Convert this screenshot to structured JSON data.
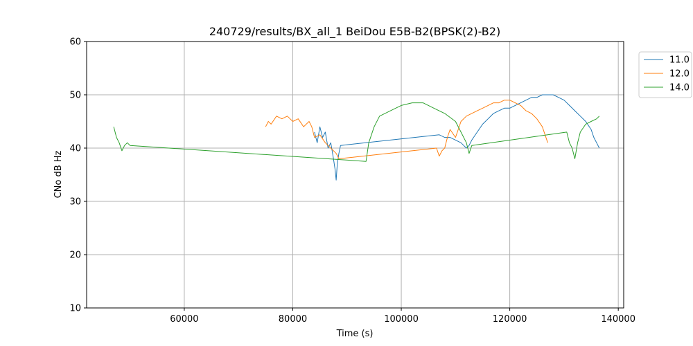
{
  "chart_data": {
    "type": "line",
    "title": "240729/results/BX_all_1 BeiDou E5B-B2(BPSK(2)-B2)",
    "xlabel": "Time (s)",
    "ylabel": "CNo dB Hz",
    "xlim": [
      42000,
      141000
    ],
    "ylim": [
      10,
      60
    ],
    "xticks": [
      60000,
      80000,
      100000,
      120000,
      140000
    ],
    "xtick_labels": [
      "60000",
      "80000",
      "100000",
      "120000",
      "140000"
    ],
    "yticks": [
      10,
      20,
      30,
      40,
      50,
      60
    ],
    "ytick_labels": [
      "10",
      "20",
      "30",
      "40",
      "50",
      "60"
    ],
    "grid": true,
    "legend": "outside-top-right",
    "series": [
      {
        "name": "11.0",
        "color": "#1f77b4",
        "x": [
          84000,
          84500,
          85000,
          85500,
          86000,
          86500,
          87000,
          87500,
          87800,
          88000,
          88200,
          88500,
          88800,
          107000,
          108000,
          109000,
          110000,
          111000,
          111500,
          112000,
          112500,
          113000,
          114000,
          115000,
          116000,
          117000,
          118000,
          119000,
          120000,
          121000,
          122000,
          123000,
          124000,
          125000,
          126000,
          127000,
          128000,
          129000,
          130000,
          131000,
          132000,
          133000,
          134000,
          135000,
          135500,
          136000,
          136500
        ],
        "y": [
          43,
          41,
          44,
          42,
          43,
          40,
          41,
          38,
          36,
          34,
          37,
          39,
          40.5,
          42.5,
          42,
          42,
          41.5,
          41,
          40.5,
          40,
          40.5,
          41.5,
          43,
          44.5,
          45.5,
          46.5,
          47,
          47.5,
          47.5,
          48,
          48.5,
          49,
          49.5,
          49.5,
          50,
          50,
          50,
          49.5,
          49,
          48,
          47,
          46,
          45,
          43.5,
          42,
          41,
          40
        ]
      },
      {
        "name": "12.0",
        "color": "#ff7f0e",
        "x": [
          75000,
          75500,
          76000,
          77000,
          78000,
          79000,
          80000,
          81000,
          82000,
          83000,
          83500,
          84000,
          85000,
          86000,
          87000,
          88000,
          88500,
          106500,
          107000,
          107500,
          108000,
          108500,
          109000,
          110000,
          111000,
          112000,
          113000,
          114000,
          115000,
          116000,
          117000,
          118000,
          119000,
          120000,
          121000,
          122000,
          123000,
          124000,
          125000,
          126000,
          126500,
          127000
        ],
        "y": [
          44,
          45,
          44.5,
          46,
          45.5,
          46,
          45,
          45.5,
          44,
          45,
          44,
          42,
          42.5,
          41,
          40,
          39,
          38,
          40,
          38.5,
          39.5,
          40,
          42,
          43.5,
          42,
          45,
          46,
          46.5,
          47,
          47.5,
          48,
          48.5,
          48.5,
          49,
          49,
          48.5,
          48,
          47,
          46.5,
          45.5,
          44,
          42.5,
          41
        ]
      },
      {
        "name": "14.0",
        "color": "#2ca02c",
        "x": [
          47000,
          47500,
          48000,
          48500,
          49000,
          49500,
          50000,
          93500,
          94000,
          95000,
          96000,
          98000,
          100000,
          102000,
          104000,
          106000,
          108000,
          110000,
          111000,
          112000,
          112500,
          113000,
          130500,
          131000,
          131500,
          132000,
          132500,
          133000,
          134000,
          135000,
          136000,
          136500
        ],
        "y": [
          44,
          42,
          41,
          39.5,
          40.5,
          41,
          40.5,
          37.5,
          41,
          44,
          46,
          47,
          48,
          48.5,
          48.5,
          47.5,
          46.5,
          45,
          43,
          41,
          39,
          40.5,
          43,
          41,
          40,
          38,
          41,
          43,
          44.5,
          45,
          45.5,
          46
        ]
      }
    ]
  }
}
